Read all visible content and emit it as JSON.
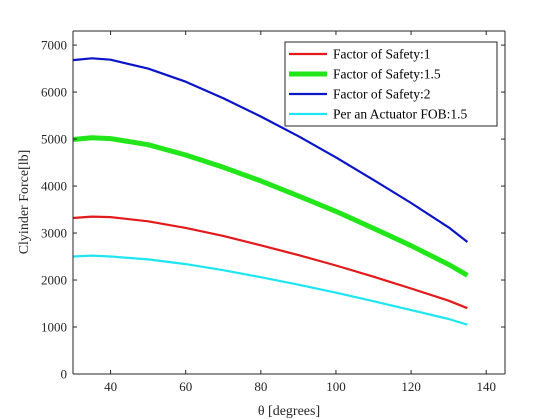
{
  "chart_data": {
    "type": "line",
    "xlabel": "θ [degrees]",
    "ylabel": "Clyinder Force[lb]",
    "xlim": [
      30,
      145
    ],
    "ylim": [
      0,
      7300
    ],
    "xticks": [
      40,
      60,
      80,
      100,
      120,
      140
    ],
    "yticks": [
      0,
      1000,
      2000,
      3000,
      4000,
      5000,
      6000,
      7000
    ],
    "grid": false,
    "legend_position": "top-right",
    "series": [
      {
        "name": "Factor of Safety:1",
        "color": "#e31a1c",
        "weight": "normal",
        "x": [
          30,
          35,
          40,
          50,
          60,
          70,
          80,
          90,
          100,
          110,
          120,
          130,
          135
        ],
        "y": [
          3320,
          3350,
          3340,
          3250,
          3110,
          2940,
          2740,
          2530,
          2310,
          2070,
          1820,
          1560,
          1400
        ]
      },
      {
        "name": "Factor of Safety:1.5",
        "color": "#22e61a",
        "weight": "thick",
        "x": [
          30,
          35,
          40,
          50,
          60,
          70,
          80,
          90,
          100,
          110,
          120,
          130,
          135
        ],
        "y": [
          4990,
          5030,
          5010,
          4880,
          4660,
          4400,
          4110,
          3790,
          3460,
          3100,
          2730,
          2330,
          2100
        ]
      },
      {
        "name": "Factor of Safety:2",
        "color": "#0a14c8",
        "weight": "normal",
        "x": [
          30,
          35,
          40,
          50,
          60,
          70,
          80,
          90,
          100,
          110,
          120,
          130,
          135
        ],
        "y": [
          6680,
          6720,
          6690,
          6500,
          6220,
          5870,
          5480,
          5060,
          4610,
          4130,
          3640,
          3120,
          2810
        ]
      },
      {
        "name": "Per an Actuator FOB:1.5",
        "color": "#1ee6f0",
        "weight": "normal",
        "x": [
          30,
          35,
          40,
          50,
          60,
          70,
          80,
          90,
          100,
          110,
          120,
          130,
          135
        ],
        "y": [
          2500,
          2520,
          2500,
          2440,
          2340,
          2210,
          2060,
          1900,
          1730,
          1550,
          1360,
          1170,
          1050
        ]
      }
    ]
  }
}
